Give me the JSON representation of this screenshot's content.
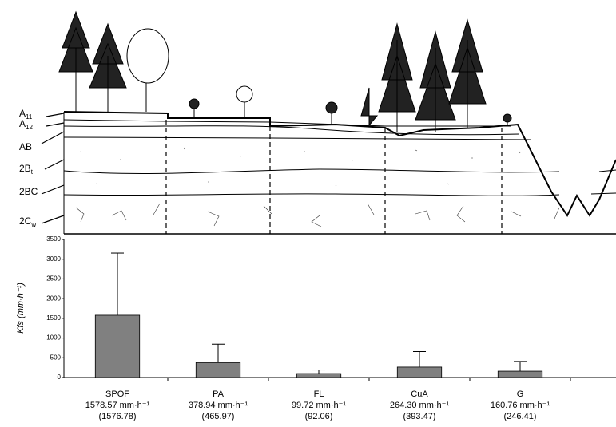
{
  "horizons": [
    {
      "main": "A",
      "sub": "11"
    },
    {
      "main": "A",
      "sub": "12"
    },
    {
      "main": "AB"
    },
    {
      "main": "2B",
      "sub": "t"
    },
    {
      "main": "2BC"
    },
    {
      "main": "2C",
      "sub": "w"
    }
  ],
  "chart_data": {
    "type": "bar",
    "y_label": "Kfs (mm·h⁻¹)",
    "categories": [
      "SPOF",
      "PA",
      "FL",
      "CuA",
      "G"
    ],
    "values": [
      1578.57,
      378.94,
      99.72,
      264.3,
      160.76
    ],
    "value_labels": [
      "1578.57 mm·h⁻¹",
      "378.94 mm·h⁻¹",
      "99.72 mm·h⁻¹",
      "264.30 mm·h⁻¹",
      "160.76 mm·h⁻¹"
    ],
    "errors": [
      1576.78,
      465.97,
      92.06,
      393.47,
      246.41
    ],
    "error_labels": [
      "(1576.78)",
      "(465.97)",
      "(92.06)",
      "(393.47)",
      "(246.41)"
    ],
    "color": "#808080",
    "ylim": [
      0,
      3500
    ],
    "yticks": [
      0,
      500,
      1000,
      1500,
      2000,
      2500,
      3000,
      3500
    ],
    "grid": false
  }
}
